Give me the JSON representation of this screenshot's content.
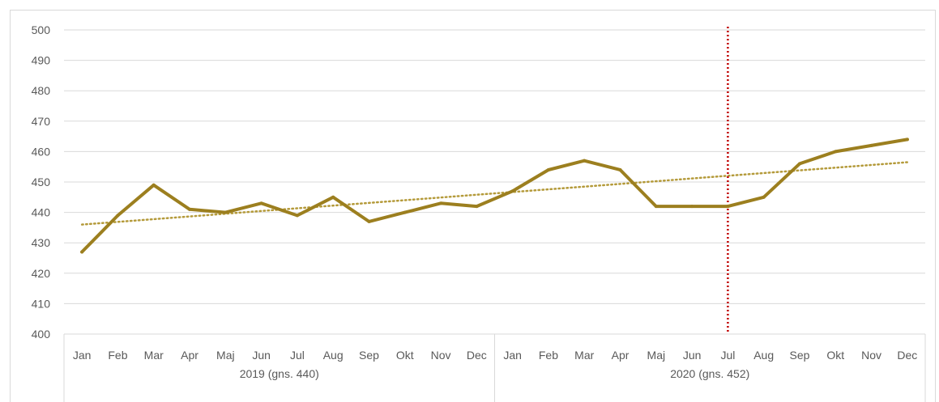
{
  "chart_data": {
    "type": "line",
    "title": "",
    "xlabel": "",
    "ylabel": "",
    "ylim": [
      400,
      500
    ],
    "yticks": [
      400,
      410,
      420,
      430,
      440,
      450,
      460,
      470,
      480,
      490,
      500
    ],
    "grid": true,
    "legend": "none",
    "categories": [
      "Jan",
      "Feb",
      "Mar",
      "Apr",
      "Maj",
      "Jun",
      "Jul",
      "Aug",
      "Sep",
      "Okt",
      "Nov",
      "Dec",
      "Jan",
      "Feb",
      "Mar",
      "Apr",
      "Maj",
      "Jun",
      "Jul",
      "Aug",
      "Sep",
      "Okt",
      "Nov",
      "Dec"
    ],
    "groups": [
      {
        "label": "2019 (gns. 440)",
        "span": 12
      },
      {
        "label": "2020 (gns. 452)",
        "span": 12
      }
    ],
    "series": [
      {
        "values": [
          427,
          439,
          449,
          441,
          440,
          443,
          439,
          445,
          437,
          440,
          443,
          442,
          447,
          454,
          457,
          454,
          442,
          442,
          442,
          445,
          456,
          460,
          462,
          464
        ],
        "color": "#9c7f1f"
      }
    ],
    "trendline": {
      "style": "dotted",
      "start": 436,
      "end": 456.5,
      "color": "#b49a3a"
    },
    "marker_line": {
      "category_index": 18,
      "style": "dotted",
      "color": "#c00000"
    },
    "colors": {
      "grid": "#d9d9d9",
      "axis_text": "#595959"
    }
  }
}
